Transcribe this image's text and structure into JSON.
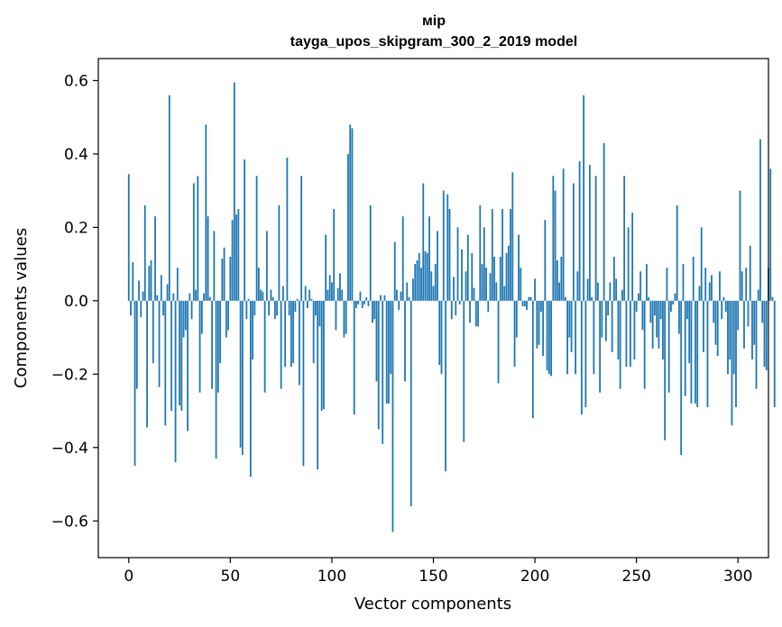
{
  "chart_data": {
    "type": "bar",
    "title": "мір",
    "subtitle": "tayga_upos_skipgram_300_2_2019 model",
    "xlabel": "Vector components",
    "ylabel": "Components values",
    "xlim": [
      -15,
      315
    ],
    "ylim": [
      -0.7,
      0.66
    ],
    "xticks": [
      0,
      50,
      100,
      150,
      200,
      250,
      300
    ],
    "yticks": [
      -0.6,
      -0.4,
      -0.2,
      0.0,
      0.2,
      0.4,
      0.6
    ],
    "xtick_labels": [
      "0",
      "50",
      "100",
      "150",
      "200",
      "250",
      "300"
    ],
    "ytick_labels": [
      "−0.6",
      "−0.4",
      "−0.2",
      "0.0",
      "0.2",
      "0.4",
      "0.6"
    ],
    "bar_color": "#1f77b4",
    "values": [
      0.345,
      -0.04,
      0.105,
      -0.45,
      -0.24,
      0.055,
      -0.045,
      0.025,
      0.26,
      -0.345,
      0.095,
      0.11,
      -0.17,
      0.23,
      0.015,
      -0.235,
      0.07,
      -0.04,
      -0.34,
      0.045,
      0.56,
      -0.3,
      0.02,
      -0.44,
      0.09,
      -0.285,
      -0.3,
      -0.1,
      -0.08,
      -0.355,
      0.02,
      -0.05,
      0.32,
      0.03,
      0.34,
      -0.25,
      -0.09,
      0.02,
      0.48,
      0.23,
      0.01,
      -0.24,
      0.19,
      -0.43,
      -0.25,
      -0.17,
      0.115,
      0.145,
      -0.1,
      -0.08,
      0.12,
      0.22,
      0.595,
      0.235,
      0.25,
      -0.4,
      -0.42,
      0.385,
      -0.05,
      0.005,
      -0.48,
      -0.16,
      -0.04,
      0.34,
      0.09,
      0.03,
      0.025,
      -0.25,
      0.19,
      -0.04,
      0.03,
      0.01,
      -0.05,
      -0.04,
      0.26,
      -0.24,
      0.04,
      -0.18,
      0.39,
      -0.04,
      -0.18,
      -0.17,
      -0.03,
      0.005,
      -0.23,
      0.34,
      -0.45,
      0.04,
      -0.02,
      0.03,
      0.005,
      -0.17,
      -0.04,
      -0.46,
      -0.07,
      -0.3,
      -0.295,
      0.18,
      0.03,
      0.07,
      0.05,
      0.25,
      -0.08,
      0.035,
      0.075,
      0.03,
      -0.1,
      -0.09,
      0.4,
      0.48,
      0.47,
      -0.31,
      -0.02,
      -0.01,
      0.025,
      -0.02,
      -0.01,
      0.01,
      -0.015,
      0.26,
      -0.06,
      -0.05,
      -0.22,
      -0.35,
      0.015,
      -0.39,
      0.015,
      -0.28,
      -0.28,
      -0.2,
      -0.63,
      0.16,
      0.03,
      -0.025,
      0.025,
      0.23,
      -0.22,
      0.05,
      0.01,
      -0.56,
      0.06,
      0.1,
      0.11,
      0.13,
      0.09,
      0.32,
      0.135,
      0.13,
      0.23,
      0.08,
      0.04,
      0.1,
      0.19,
      -0.175,
      -0.2,
      0.3,
      -0.465,
      0.29,
      0.25,
      -0.05,
      0.065,
      -0.04,
      0.2,
      -0.01,
      0.14,
      -0.385,
      0.08,
      0.18,
      -0.06,
      0.13,
      0.035,
      -0.07,
      -0.07,
      0.26,
      0.1,
      0.2,
      0.09,
      -0.03,
      0.075,
      0.25,
      0.12,
      0.05,
      -0.225,
      0.12,
      0.25,
      0.04,
      0.13,
      0.15,
      0.25,
      0.35,
      -0.18,
      -0.1,
      0.18,
      0.09,
      -0.015,
      -0.015,
      -0.025,
      0.01,
      0.01,
      -0.32,
      0.06,
      -0.13,
      -0.12,
      -0.03,
      -0.15,
      0.22,
      -0.19,
      -0.2,
      -0.205,
      0.34,
      0.3,
      0.11,
      0.05,
      0.12,
      0.36,
      0.01,
      -0.2,
      -0.1,
      -0.14,
      0.32,
      -0.2,
      0.08,
      0.38,
      -0.31,
      0.56,
      -0.29,
      0.06,
      0.37,
      0.01,
      -0.2,
      0.34,
      0.05,
      -0.25,
      -0.1,
      0.43,
      -0.11,
      -0.04,
      0.05,
      -0.14,
      0.12,
      0.06,
      -0.16,
      -0.24,
      0.03,
      0.34,
      -0.18,
      0.2,
      -0.18,
      0.24,
      -0.16,
      -0.03,
      0.02,
      0.08,
      -0.08,
      -0.24,
      0.1,
      0.01,
      -0.06,
      -0.13,
      -0.04,
      -0.1,
      -0.13,
      -0.05,
      -0.16,
      -0.38,
      0.09,
      -0.25,
      -0.03,
      -0.01,
      0.02,
      0.26,
      -0.09,
      -0.42,
      0.1,
      -0.26,
      -0.05,
      -0.17,
      -0.28,
      0.12,
      -0.28,
      -0.29,
      0.04,
      0.2,
      -0.14,
      0.09,
      -0.29,
      0.05,
      0.07,
      -0.06,
      -0.12,
      -0.15,
      0.08,
      -0.05,
      0.01,
      -0.03,
      -0.2,
      -0.16,
      -0.34,
      -0.2,
      -0.29,
      -0.08,
      0.3,
      0.08,
      -0.13,
      0.09,
      -0.07,
      0.15,
      -0.16,
      -0.12,
      -0.24,
      0.03,
      0.44,
      -0.06,
      -0.18,
      -0.19,
      0.09,
      0.36,
      0.01,
      -0.29
    ]
  }
}
